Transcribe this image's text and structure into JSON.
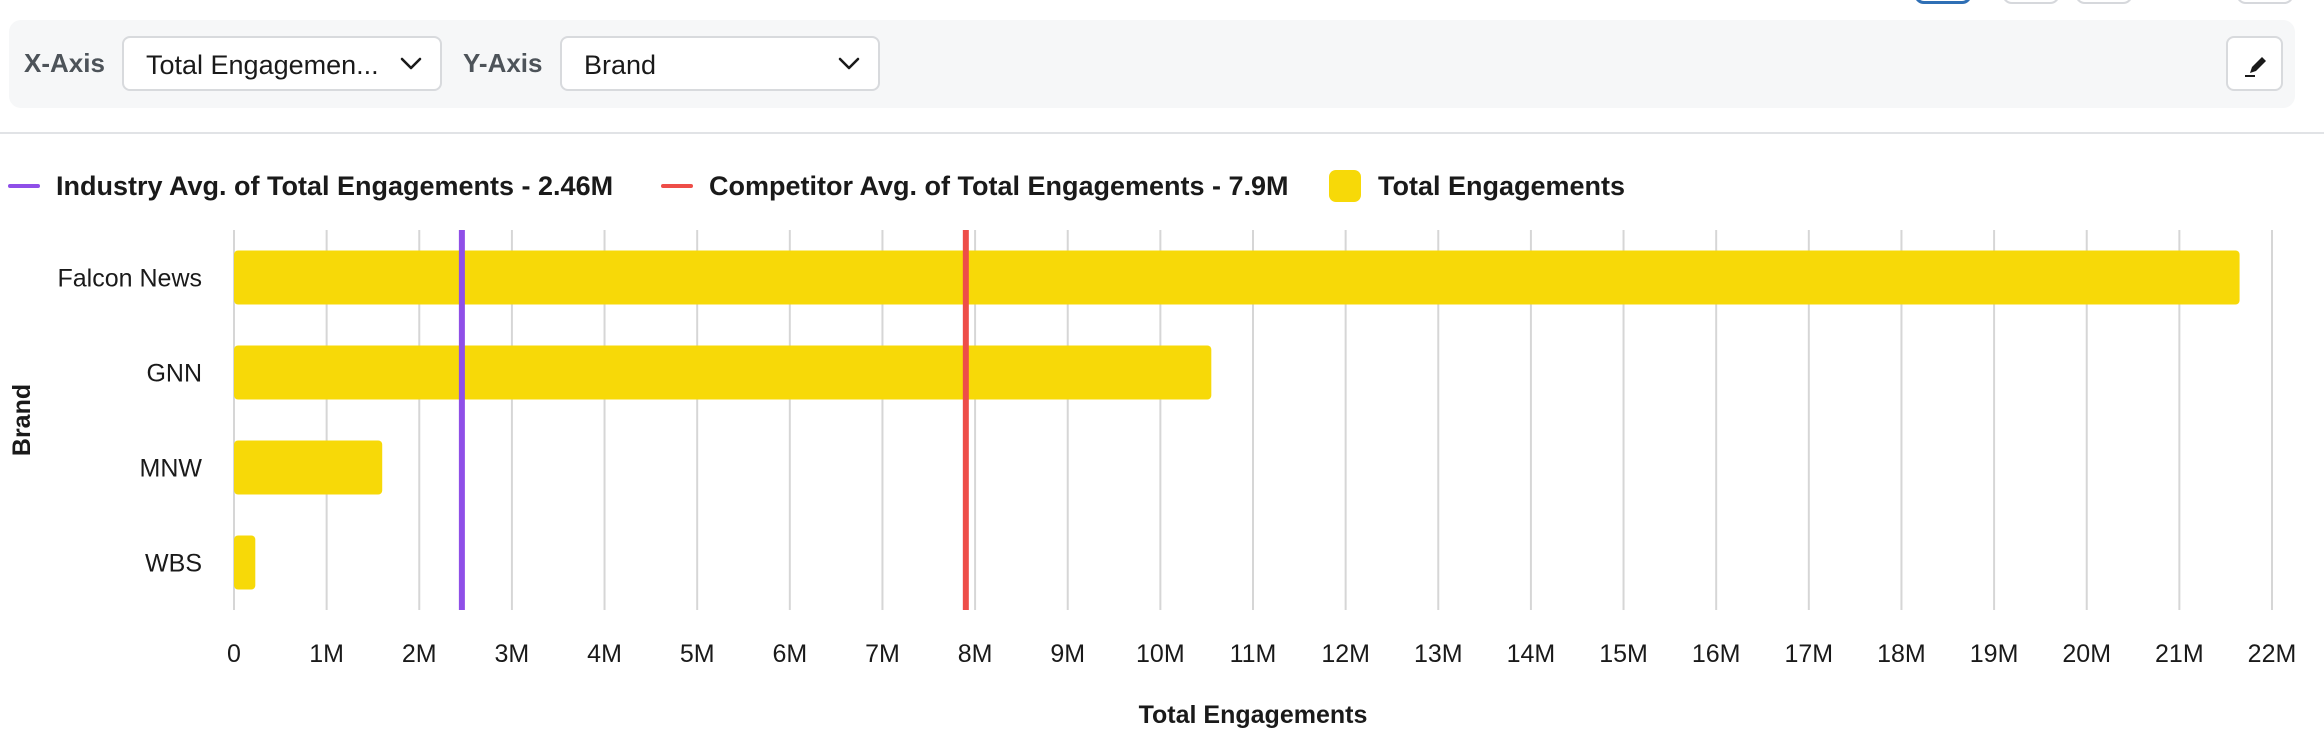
{
  "toolbar": {
    "x_axis_label": "X-Axis",
    "x_axis_value": "Total Engagemen...",
    "y_axis_label": "Y-Axis",
    "y_axis_value": "Brand"
  },
  "legend": {
    "industry_avg": "Industry Avg. of Total Engagements - 2.46M",
    "competitor_avg": "Competitor Avg. of Total Engagements - 7.9M",
    "series": "Total Engagements"
  },
  "colors": {
    "bar": "#f7d908",
    "industry_line": "#8f4fe8",
    "competitor_line": "#ee4d48",
    "grid": "#d6d6d6",
    "active_tab": "#2f6fb5"
  },
  "chart_data": {
    "type": "bar",
    "orientation": "horizontal",
    "title": "",
    "xlabel": "Total Engagements",
    "ylabel": "Brand",
    "categories": [
      "Falcon News",
      "GNN",
      "MNW",
      "WBS"
    ],
    "series": [
      {
        "name": "Total Engagements",
        "values": [
          21650000,
          10550000,
          1600000,
          230000
        ]
      }
    ],
    "reference_lines": [
      {
        "name": "Industry Avg. of Total Engagements",
        "value": 2460000,
        "color": "#8f4fe8"
      },
      {
        "name": "Competitor Avg. of Total Engagements",
        "value": 7900000,
        "color": "#ee4d48"
      }
    ],
    "xlim": [
      0,
      22000000
    ],
    "x_tick_step": 1000000,
    "x_ticks": [
      "0",
      "1M",
      "2M",
      "3M",
      "4M",
      "5M",
      "6M",
      "7M",
      "8M",
      "9M",
      "10M",
      "11M",
      "12M",
      "13M",
      "14M",
      "15M",
      "16M",
      "17M",
      "18M",
      "19M",
      "20M",
      "21M",
      "22M"
    ],
    "grid": true,
    "legend_position": "top-left"
  }
}
